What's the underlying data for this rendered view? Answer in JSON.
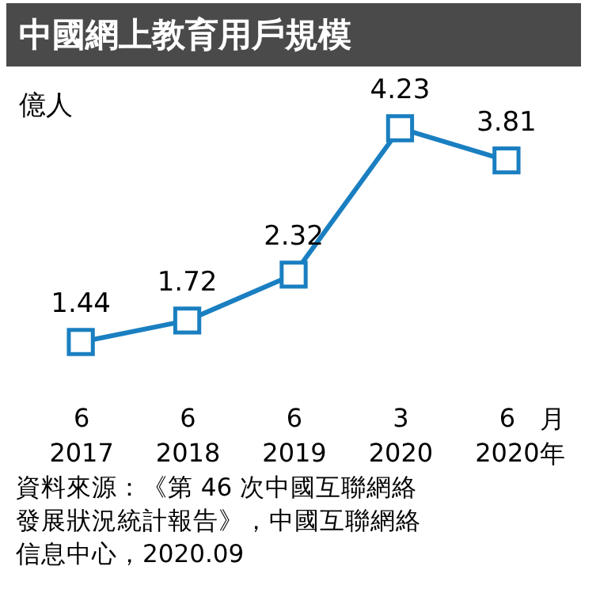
{
  "chart_data": {
    "type": "line",
    "title": "中國網上教育用戶規模",
    "ylabel": "億人",
    "categories": [
      "6\n2017",
      "6\n2018",
      "6\n2019",
      "3\n2020",
      "6\n2020"
    ],
    "series": [
      {
        "color": "#1a7fc1",
        "values": [
          1.44,
          1.72,
          2.32,
          4.23,
          3.81
        ]
      }
    ],
    "data_labels": true,
    "marker": "square",
    "line_style": "solid",
    "grid": false,
    "tick_labels": "x",
    "annotations": [
      "月年",
      "資料來源：《第 46 次中國互聯網絡發展狀況統計報告》，中國互聯網絡信息中心，2020.09"
    ]
  }
}
